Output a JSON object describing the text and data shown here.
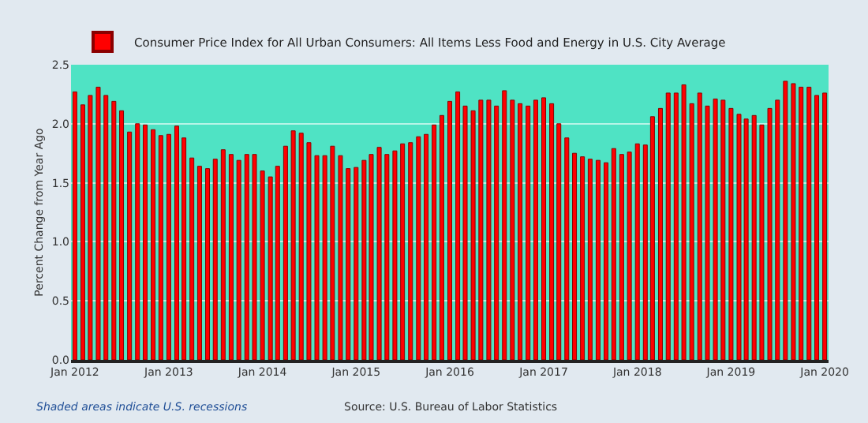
{
  "chart_data": {
    "type": "bar",
    "ylabel": "Percent Change from Year Ago",
    "x": [
      "2012-01",
      "2012-02",
      "2012-03",
      "2012-04",
      "2012-05",
      "2012-06",
      "2012-07",
      "2012-08",
      "2012-09",
      "2012-10",
      "2012-11",
      "2012-12",
      "2013-01",
      "2013-02",
      "2013-03",
      "2013-04",
      "2013-05",
      "2013-06",
      "2013-07",
      "2013-08",
      "2013-09",
      "2013-10",
      "2013-11",
      "2013-12",
      "2014-01",
      "2014-02",
      "2014-03",
      "2014-04",
      "2014-05",
      "2014-06",
      "2014-07",
      "2014-08",
      "2014-09",
      "2014-10",
      "2014-11",
      "2014-12",
      "2015-01",
      "2015-02",
      "2015-03",
      "2015-04",
      "2015-05",
      "2015-06",
      "2015-07",
      "2015-08",
      "2015-09",
      "2015-10",
      "2015-11",
      "2015-12",
      "2016-01",
      "2016-02",
      "2016-03",
      "2016-04",
      "2016-05",
      "2016-06",
      "2016-07",
      "2016-08",
      "2016-09",
      "2016-10",
      "2016-11",
      "2016-12",
      "2017-01",
      "2017-02",
      "2017-03",
      "2017-04",
      "2017-05",
      "2017-06",
      "2017-07",
      "2017-08",
      "2017-09",
      "2017-10",
      "2017-11",
      "2017-12",
      "2018-01",
      "2018-02",
      "2018-03",
      "2018-04",
      "2018-05",
      "2018-06",
      "2018-07",
      "2018-08",
      "2018-09",
      "2018-10",
      "2018-11",
      "2018-12",
      "2019-01",
      "2019-02",
      "2019-03",
      "2019-04",
      "2019-05",
      "2019-06",
      "2019-07",
      "2019-08",
      "2019-09",
      "2019-10",
      "2019-11",
      "2019-12",
      "2020-01"
    ],
    "series": [
      {
        "name": "Consumer Price Index for All Urban Consumers: All Items Less Food and Energy in U.S. City Average",
        "color": "#ff0000",
        "values": [
          2.27,
          2.16,
          2.24,
          2.31,
          2.24,
          2.19,
          2.11,
          1.93,
          2.0,
          1.99,
          1.95,
          1.9,
          1.91,
          1.98,
          1.88,
          1.71,
          1.64,
          1.62,
          1.7,
          1.78,
          1.74,
          1.69,
          1.74,
          1.74,
          1.6,
          1.55,
          1.64,
          1.81,
          1.94,
          1.92,
          1.84,
          1.73,
          1.73,
          1.81,
          1.73,
          1.62,
          1.63,
          1.69,
          1.74,
          1.8,
          1.74,
          1.77,
          1.83,
          1.84,
          1.89,
          1.91,
          1.99,
          2.07,
          2.19,
          2.27,
          2.15,
          2.11,
          2.2,
          2.2,
          2.15,
          2.28,
          2.2,
          2.17,
          2.15,
          2.2,
          2.22,
          2.17,
          2.0,
          1.88,
          1.75,
          1.72,
          1.7,
          1.69,
          1.67,
          1.79,
          1.74,
          1.76,
          1.83,
          1.82,
          2.06,
          2.13,
          2.26,
          2.26,
          2.33,
          2.17,
          2.26,
          2.15,
          2.21,
          2.2,
          2.13,
          2.08,
          2.04,
          2.07,
          1.99,
          2.13,
          2.2,
          2.36,
          2.34,
          2.31,
          2.31,
          2.24,
          2.26
        ]
      }
    ],
    "xlim": [
      "2011-12-17",
      "2020-01-16"
    ],
    "xticks": [
      {
        "value": "2012-01",
        "label": "Jan 2012"
      },
      {
        "value": "2013-01",
        "label": "Jan 2013"
      },
      {
        "value": "2014-01",
        "label": "Jan 2014"
      },
      {
        "value": "2015-01",
        "label": "Jan 2015"
      },
      {
        "value": "2016-01",
        "label": "Jan 2016"
      },
      {
        "value": "2017-01",
        "label": "Jan 2017"
      },
      {
        "value": "2018-01",
        "label": "Jan 2018"
      },
      {
        "value": "2019-01",
        "label": "Jan 2019"
      },
      {
        "value": "2020-01",
        "label": "Jan 2020"
      }
    ],
    "ylim": [
      0,
      2.5
    ],
    "yticks": [
      {
        "value": 0,
        "label": "0.0"
      },
      {
        "value": 0.5,
        "label": "0.5"
      },
      {
        "value": 1,
        "label": "1.0"
      },
      {
        "value": 1.5,
        "label": "1.5"
      },
      {
        "value": 2,
        "label": "2.0"
      },
      {
        "value": 2.5,
        "label": "2.5"
      }
    ],
    "grid": "y",
    "legend": "top left",
    "annotations": [
      "Shaded areas indicate U.S. recessions",
      "Source: U.S. Bureau of Labor Statistics"
    ]
  }
}
